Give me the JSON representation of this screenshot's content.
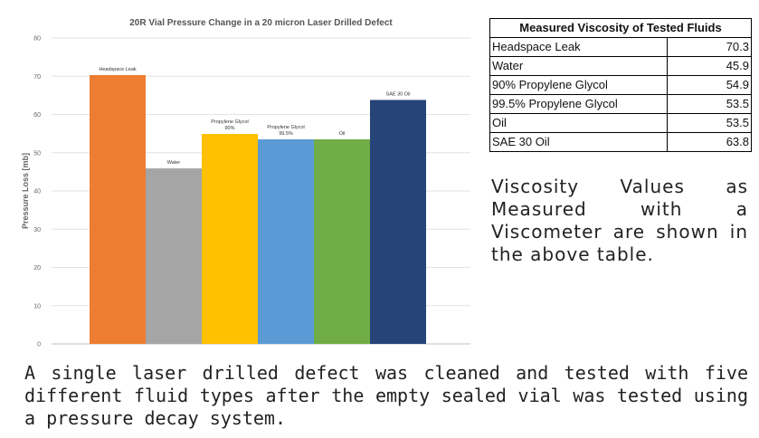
{
  "chart_data": {
    "type": "bar",
    "title": "20R Vial Pressure Change in a 20 micron Laser Drilled Defect",
    "xlabel": "",
    "ylabel": "Pressure Loss [mb]",
    "ylim": [
      0,
      80
    ],
    "yticks": [
      "0",
      "10",
      "20",
      "30",
      "40",
      "50",
      "60",
      "70",
      "80"
    ],
    "grid": true,
    "legend": "none",
    "categories": [
      "Headspace Leak",
      "Water",
      "Propylene Glycol 90%",
      "Propylene Glycol 99.5%",
      "Oil",
      "SAE 30 Oil"
    ],
    "bar_labels": [
      [
        "Headspace Leak"
      ],
      [
        "Water"
      ],
      [
        "Propylene Glycol",
        "90%"
      ],
      [
        "Propylene Glycol",
        "99.5%"
      ],
      [
        "Oil"
      ],
      [
        "SAE 30 Oil"
      ]
    ],
    "values": [
      70.3,
      45.9,
      54.9,
      53.5,
      53.5,
      63.8
    ],
    "colors": [
      "#ED7D31",
      "#A5A5A5",
      "#FFC000",
      "#5B9BD5",
      "#70AD47",
      "#264478"
    ]
  },
  "table": {
    "title": "Measured Viscosity of Tested Fluids",
    "rows": [
      {
        "fluid": "Headspace Leak",
        "value": "70.3"
      },
      {
        "fluid": "Water",
        "value": "45.9"
      },
      {
        "fluid": "90% Propylene Glycol",
        "value": "54.9"
      },
      {
        "fluid": "99.5% Propylene Glycol",
        "value": "53.5"
      },
      {
        "fluid": "Oil",
        "value": "53.5"
      },
      {
        "fluid": "SAE 30 Oil",
        "value": "63.8"
      }
    ]
  },
  "side_note": "Viscosity Values as Measured with a Viscometer are shown in the above table.",
  "caption": "A single laser drilled defect was cleaned and tested with five different fluid types after the empty sealed vial was tested using a pressure decay system."
}
